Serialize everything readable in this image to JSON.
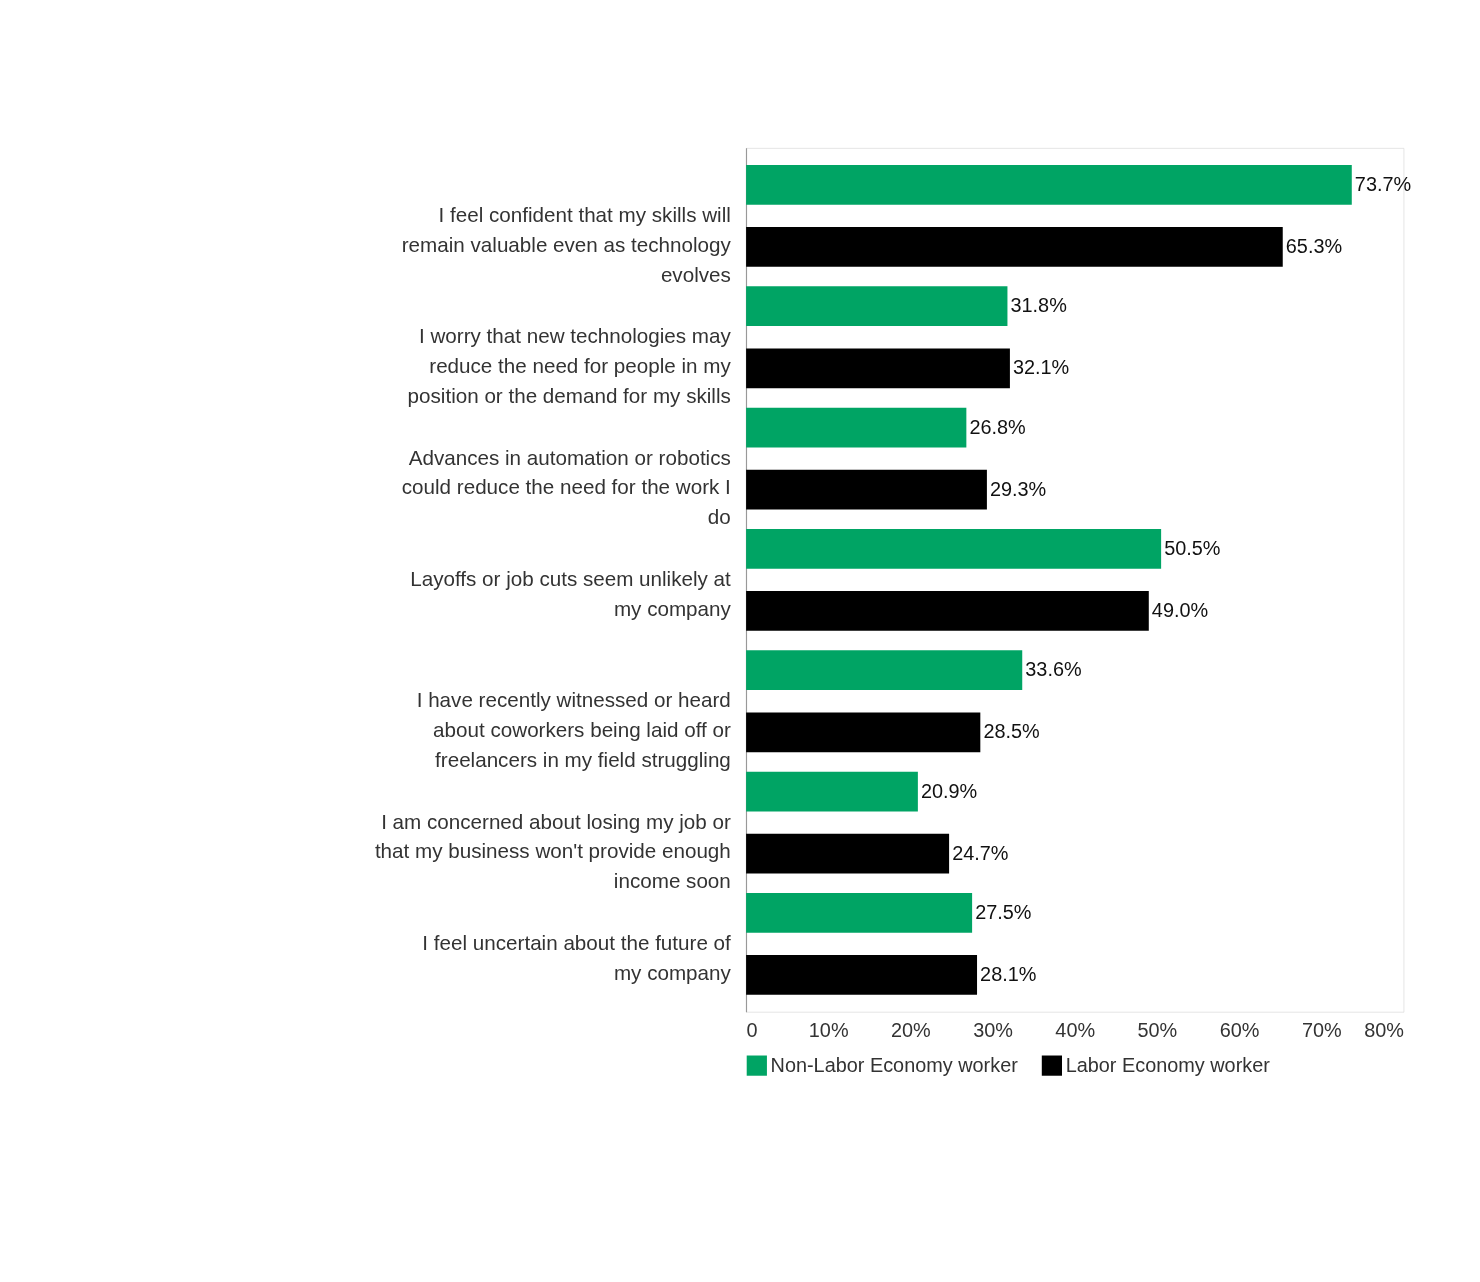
{
  "chart_data": {
    "type": "bar",
    "orientation": "horizontal",
    "categories": [
      "I feel confident that my skills will remain valuable even as technology evolves",
      "I worry that new technologies may reduce the need for people in my position or the demand for my skills",
      "Advances in automation or robotics could reduce the need for the work I do",
      "Layoffs or job cuts seem unlikely at my company",
      "I have recently witnessed or heard about coworkers being laid off or freelancers in my field struggling",
      "I am concerned about losing my job or that my business won't provide enough income soon",
      "I feel uncertain about the future of my company"
    ],
    "series": [
      {
        "name": "Non-Labor Economy worker",
        "color": "#00a464",
        "values": [
          73.7,
          31.8,
          26.8,
          50.5,
          33.6,
          20.9,
          27.5
        ],
        "value_labels": [
          "73.7%",
          "31.8%",
          "26.8%",
          "50.5%",
          "33.6%",
          "20.9%",
          "27.5%"
        ]
      },
      {
        "name": "Labor Economy worker",
        "color": "#000000",
        "values": [
          65.3,
          32.1,
          29.3,
          49.0,
          28.5,
          24.7,
          28.1
        ],
        "value_labels": [
          "65.3%",
          "32.1%",
          "29.3%",
          "49.0%",
          "28.5%",
          "24.7%",
          "28.1%"
        ]
      }
    ],
    "xlim": [
      0,
      80
    ],
    "xticks": [
      0,
      {
        "value": 10,
        "label": "10%"
      },
      {
        "value": 20,
        "label": "20%"
      },
      {
        "value": 30,
        "label": "30%"
      },
      {
        "value": 40,
        "label": "40%"
      },
      {
        "value": 50,
        "label": "50%"
      },
      {
        "value": 60,
        "label": "60%"
      },
      {
        "value": 70,
        "label": "70%"
      },
      {
        "value": 80,
        "label": "80%"
      }
    ],
    "grid": false,
    "legend": "bottom"
  }
}
